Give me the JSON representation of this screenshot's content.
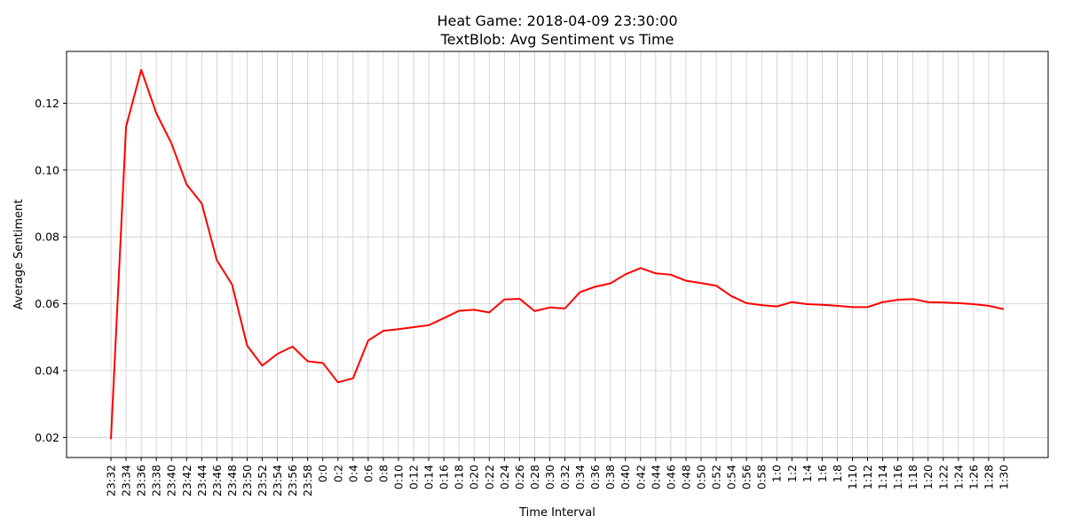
{
  "chart_data": {
    "type": "line",
    "title": "Heat Game: 2018-04-09 23:30:00",
    "subtitle": "TextBlob: Avg Sentiment vs Time",
    "xlabel": "Time Interval",
    "ylabel": "Average Sentiment",
    "ylim": [
      0.014,
      0.1355
    ],
    "yticks": [
      0.02,
      0.04,
      0.06,
      0.08,
      0.1,
      0.12
    ],
    "ytick_labels": [
      "0.02",
      "0.04",
      "0.06",
      "0.08",
      "0.10",
      "0.12"
    ],
    "grid": true,
    "categories": [
      "23:32",
      "23:34",
      "23:36",
      "23:38",
      "23:40",
      "23:42",
      "23:44",
      "23:46",
      "23:48",
      "23:50",
      "23:52",
      "23:54",
      "23:56",
      "23:58",
      "0:0",
      "0:2",
      "0:4",
      "0:6",
      "0:8",
      "0:10",
      "0:12",
      "0:14",
      "0:16",
      "0:18",
      "0:20",
      "0:22",
      "0:24",
      "0:26",
      "0:28",
      "0:30",
      "0:32",
      "0:34",
      "0:36",
      "0:38",
      "0:40",
      "0:42",
      "0:44",
      "0:46",
      "0:48",
      "0:50",
      "0:52",
      "0:54",
      "0:56",
      "0:58",
      "1:0",
      "1:2",
      "1:4",
      "1:6",
      "1:8",
      "1:10",
      "1:12",
      "1:14",
      "1:16",
      "1:18",
      "1:20",
      "1:22",
      "1:24",
      "1:26",
      "1:28",
      "1:30"
    ],
    "series": [
      {
        "color": "#ff0000",
        "values": [
          0.0195,
          0.113,
          0.13,
          0.117,
          0.108,
          0.0957,
          0.09,
          0.073,
          0.0658,
          0.0475,
          0.0415,
          0.045,
          0.0472,
          0.0428,
          0.0423,
          0.0365,
          0.0377,
          0.049,
          0.0519,
          0.0524,
          0.053,
          0.0536,
          0.0557,
          0.0579,
          0.0582,
          0.0574,
          0.0613,
          0.0615,
          0.0578,
          0.0589,
          0.0586,
          0.0635,
          0.0651,
          0.0661,
          0.0688,
          0.0707,
          0.0691,
          0.0687,
          0.0669,
          0.0662,
          0.0654,
          0.0623,
          0.0602,
          0.0596,
          0.0592,
          0.0605,
          0.0599,
          0.0597,
          0.0594,
          0.059,
          0.059,
          0.0605,
          0.0612,
          0.0614,
          0.0605,
          0.0604,
          0.0602,
          0.0599,
          0.0594,
          0.0584
        ]
      }
    ]
  }
}
